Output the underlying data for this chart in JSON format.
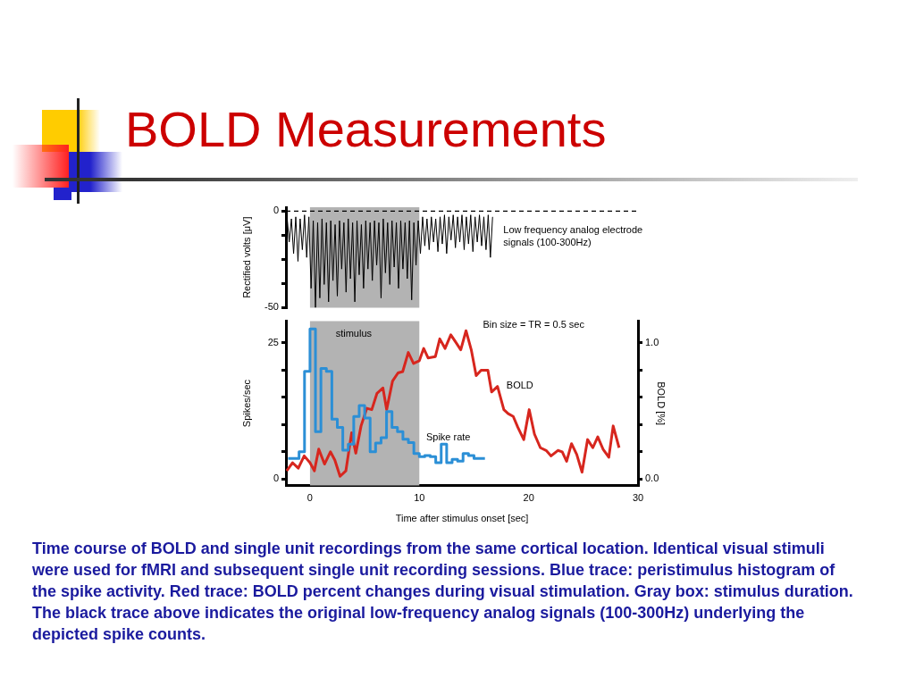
{
  "chart_data": [
    {
      "type": "line",
      "title": "BOLD Measurements",
      "ylabel": "Rectified volts [μV]",
      "xlim": [
        -2.2,
        30
      ],
      "ylim": [
        -50,
        2
      ],
      "yticks": [
        0,
        {
          "value": -12.5,
          "label": null
        },
        {
          "value": -25,
          "label": null
        },
        {
          "value": -37.5,
          "label": null
        },
        -50
      ],
      "tick_labels": "y",
      "grid": false,
      "series": [
        {
          "name": "Low frequency analog electrode signals (100-300Hz)",
          "color": "#000000",
          "x": [
            -2.1,
            -1.9,
            -1.7,
            -1.5,
            -1.3,
            -1.1,
            -0.9,
            -0.7,
            -0.5,
            -0.3,
            -0.1,
            0.1,
            0.3,
            0.5,
            0.7,
            0.9,
            1.1,
            1.3,
            1.5,
            1.7,
            1.9,
            2.1,
            2.3,
            2.5,
            2.7,
            2.9,
            3.1,
            3.3,
            3.5,
            3.7,
            3.9,
            4.1,
            4.3,
            4.5,
            4.7,
            4.9,
            5.1,
            5.3,
            5.5,
            5.7,
            5.9,
            6.1,
            6.3,
            6.5,
            6.7,
            6.9,
            7.1,
            7.3,
            7.5,
            7.7,
            7.9,
            8.1,
            8.3,
            8.5,
            8.7,
            8.9,
            9.1,
            9.3,
            9.5,
            9.7,
            9.9,
            10.1,
            10.3,
            10.5,
            10.7,
            10.9,
            11.1,
            11.3,
            11.5,
            11.7,
            11.9,
            12.1,
            12.3,
            12.5,
            12.7,
            12.9,
            13.1,
            13.3,
            13.5,
            13.7,
            13.9,
            14.1,
            14.3,
            14.5,
            14.7,
            14.9,
            15.1,
            15.3,
            15.5,
            15.7,
            15.9,
            16.1,
            16.3,
            16.5,
            16.7
          ],
          "values": [
            -3,
            -16,
            -4,
            -22,
            -3,
            -26,
            -4,
            -20,
            -2,
            -24,
            -3,
            -40,
            -5,
            -50,
            -6,
            -45,
            -4,
            -38,
            -6,
            -47,
            -5,
            -36,
            -7,
            -44,
            -5,
            -30,
            -6,
            -42,
            -4,
            -35,
            -6,
            -47,
            -5,
            -33,
            -7,
            -40,
            -5,
            -30,
            -6,
            -36,
            -5,
            -28,
            -6,
            -45,
            -4,
            -32,
            -6,
            -38,
            -5,
            -29,
            -6,
            -40,
            -5,
            -30,
            -6,
            -35,
            -5,
            -46,
            -6,
            -28,
            -5,
            -22,
            -3,
            -18,
            -4,
            -20,
            -3,
            -16,
            -4,
            -21,
            -3,
            -17,
            -2,
            -22,
            -3,
            -15,
            -2,
            -19,
            -3,
            -16,
            -2,
            -20,
            -3,
            -17,
            -2,
            -21,
            -3,
            -16,
            -2,
            -18,
            -3,
            -20,
            -2,
            -24,
            -3
          ]
        }
      ],
      "ref_lines": [
        {
          "axis": "y",
          "value": 0,
          "line_style": "dashed",
          "color": "#000000"
        }
      ],
      "bands": [
        {
          "axis": "x",
          "from": 0,
          "to": 10,
          "color": "#b3b3b3"
        }
      ]
    },
    {
      "type": "line",
      "xlabel": "Time after stimulus onset [sec]",
      "ylabel": "Spikes/sec",
      "y2label": "BOLD [%]",
      "xlim": [
        -2.2,
        30
      ],
      "xticks": [
        0,
        10,
        20,
        30
      ],
      "ylim": [
        -1.2,
        29
      ],
      "yticks": [
        0,
        {
          "value": 5,
          "label": null
        },
        {
          "value": 10,
          "label": null
        },
        {
          "value": 15,
          "label": null
        },
        {
          "value": 20,
          "label": null
        },
        25
      ],
      "y2lim": [
        -0.048,
        1.16
      ],
      "y2ticks": [
        {
          "value": 0,
          "label": "0.0"
        },
        {
          "value": 0.2,
          "label": null
        },
        {
          "value": 0.4,
          "label": null
        },
        {
          "value": 0.6,
          "label": null
        },
        {
          "value": 0.8,
          "label": null
        },
        {
          "value": 1,
          "label": "1.0"
        }
      ],
      "grid": false,
      "series": [
        {
          "type": "step",
          "name": "Spike rate",
          "color": "#2b8fd6",
          "x": [
            -2,
            -1.5,
            -1,
            -0.5,
            0,
            0.5,
            1,
            1.5,
            2,
            2.5,
            3,
            3.5,
            4,
            4.5,
            5,
            5.5,
            6,
            6.5,
            7,
            7.5,
            8,
            8.5,
            9,
            9.5,
            10,
            10.5,
            11,
            11.5,
            12,
            12.5,
            13,
            13.5,
            14,
            14.5,
            15,
            15.5,
            16
          ],
          "values": [
            3.8,
            3.8,
            3.8,
            5,
            19.8,
            27.6,
            8.7,
            20.3,
            19.8,
            11,
            9.5,
            5.3,
            6.4,
            11.5,
            13.5,
            11.2,
            5,
            6.6,
            7.6,
            12.4,
            9.5,
            8.7,
            7.3,
            6.7,
            4.7,
            4.1,
            4.3,
            4.1,
            3,
            6.4,
            3,
            3.6,
            3.3,
            4.7,
            4.3,
            3.8,
            3.8
          ]
        },
        {
          "type": "line",
          "name": "BOLD",
          "axis": "y2",
          "color": "#d7261e",
          "x": [
            -2.13,
            -1.6,
            -1.07,
            -0.53,
            0,
            0.4,
            0.8,
            1.33,
            1.87,
            2.27,
            2.75,
            3.28,
            3.81,
            4.19,
            4.67,
            5.2,
            5.65,
            6.13,
            6.67,
            7.01,
            7.55,
            8.05,
            8.48,
            8.99,
            9.47,
            10,
            10.4,
            10.8,
            11.47,
            11.87,
            12.35,
            12.88,
            13.79,
            14.27,
            14.75,
            15.2,
            15.65,
            16.27,
            16.61,
            17.15,
            17.73,
            18.13,
            18.59,
            19.01,
            19.55,
            20.05,
            20.53,
            21.07,
            21.6,
            22.05,
            22.67,
            23.07,
            23.47,
            23.92,
            24.4,
            24.88,
            25.39,
            25.87,
            26.32,
            26.8,
            27.33,
            27.73,
            28.27
          ],
          "values": [
            0.06,
            0.12,
            0.08,
            0.17,
            0.12,
            0.06,
            0.22,
            0.11,
            0.2,
            0.14,
            0.02,
            0.06,
            0.34,
            0.19,
            0.39,
            0.52,
            0.51,
            0.63,
            0.67,
            0.51,
            0.72,
            0.78,
            0.79,
            0.93,
            0.85,
            0.87,
            0.96,
            0.89,
            0.9,
            1.03,
            0.96,
            1.06,
            0.95,
            1.09,
            0.95,
            0.76,
            0.8,
            0.8,
            0.64,
            0.68,
            0.51,
            0.48,
            0.46,
            0.38,
            0.29,
            0.51,
            0.33,
            0.23,
            0.21,
            0.17,
            0.21,
            0.2,
            0.13,
            0.26,
            0.18,
            0.05,
            0.29,
            0.23,
            0.31,
            0.22,
            0.16,
            0.39,
            0.23
          ]
        }
      ],
      "bands": [
        {
          "axis": "x",
          "from": 0,
          "to": 10,
          "color": "#b3b3b3",
          "label": "stimulus"
        }
      ],
      "annotations": [
        "Bin size = TR = 0.5 sec",
        "Time course of BOLD and single unit recordings from the same cortical location. Identical visual stimuli were used for fMRI and subsequent single unit recording sessions. Blue trace: peristimulus histogram of the spike activity. Red trace: BOLD percent changes during visual stimulation. Gray box: stimulus duration. The black trace above indicates the original low-frequency analog signals (100-300Hz) underlying the depicted spike counts."
      ]
    }
  ]
}
